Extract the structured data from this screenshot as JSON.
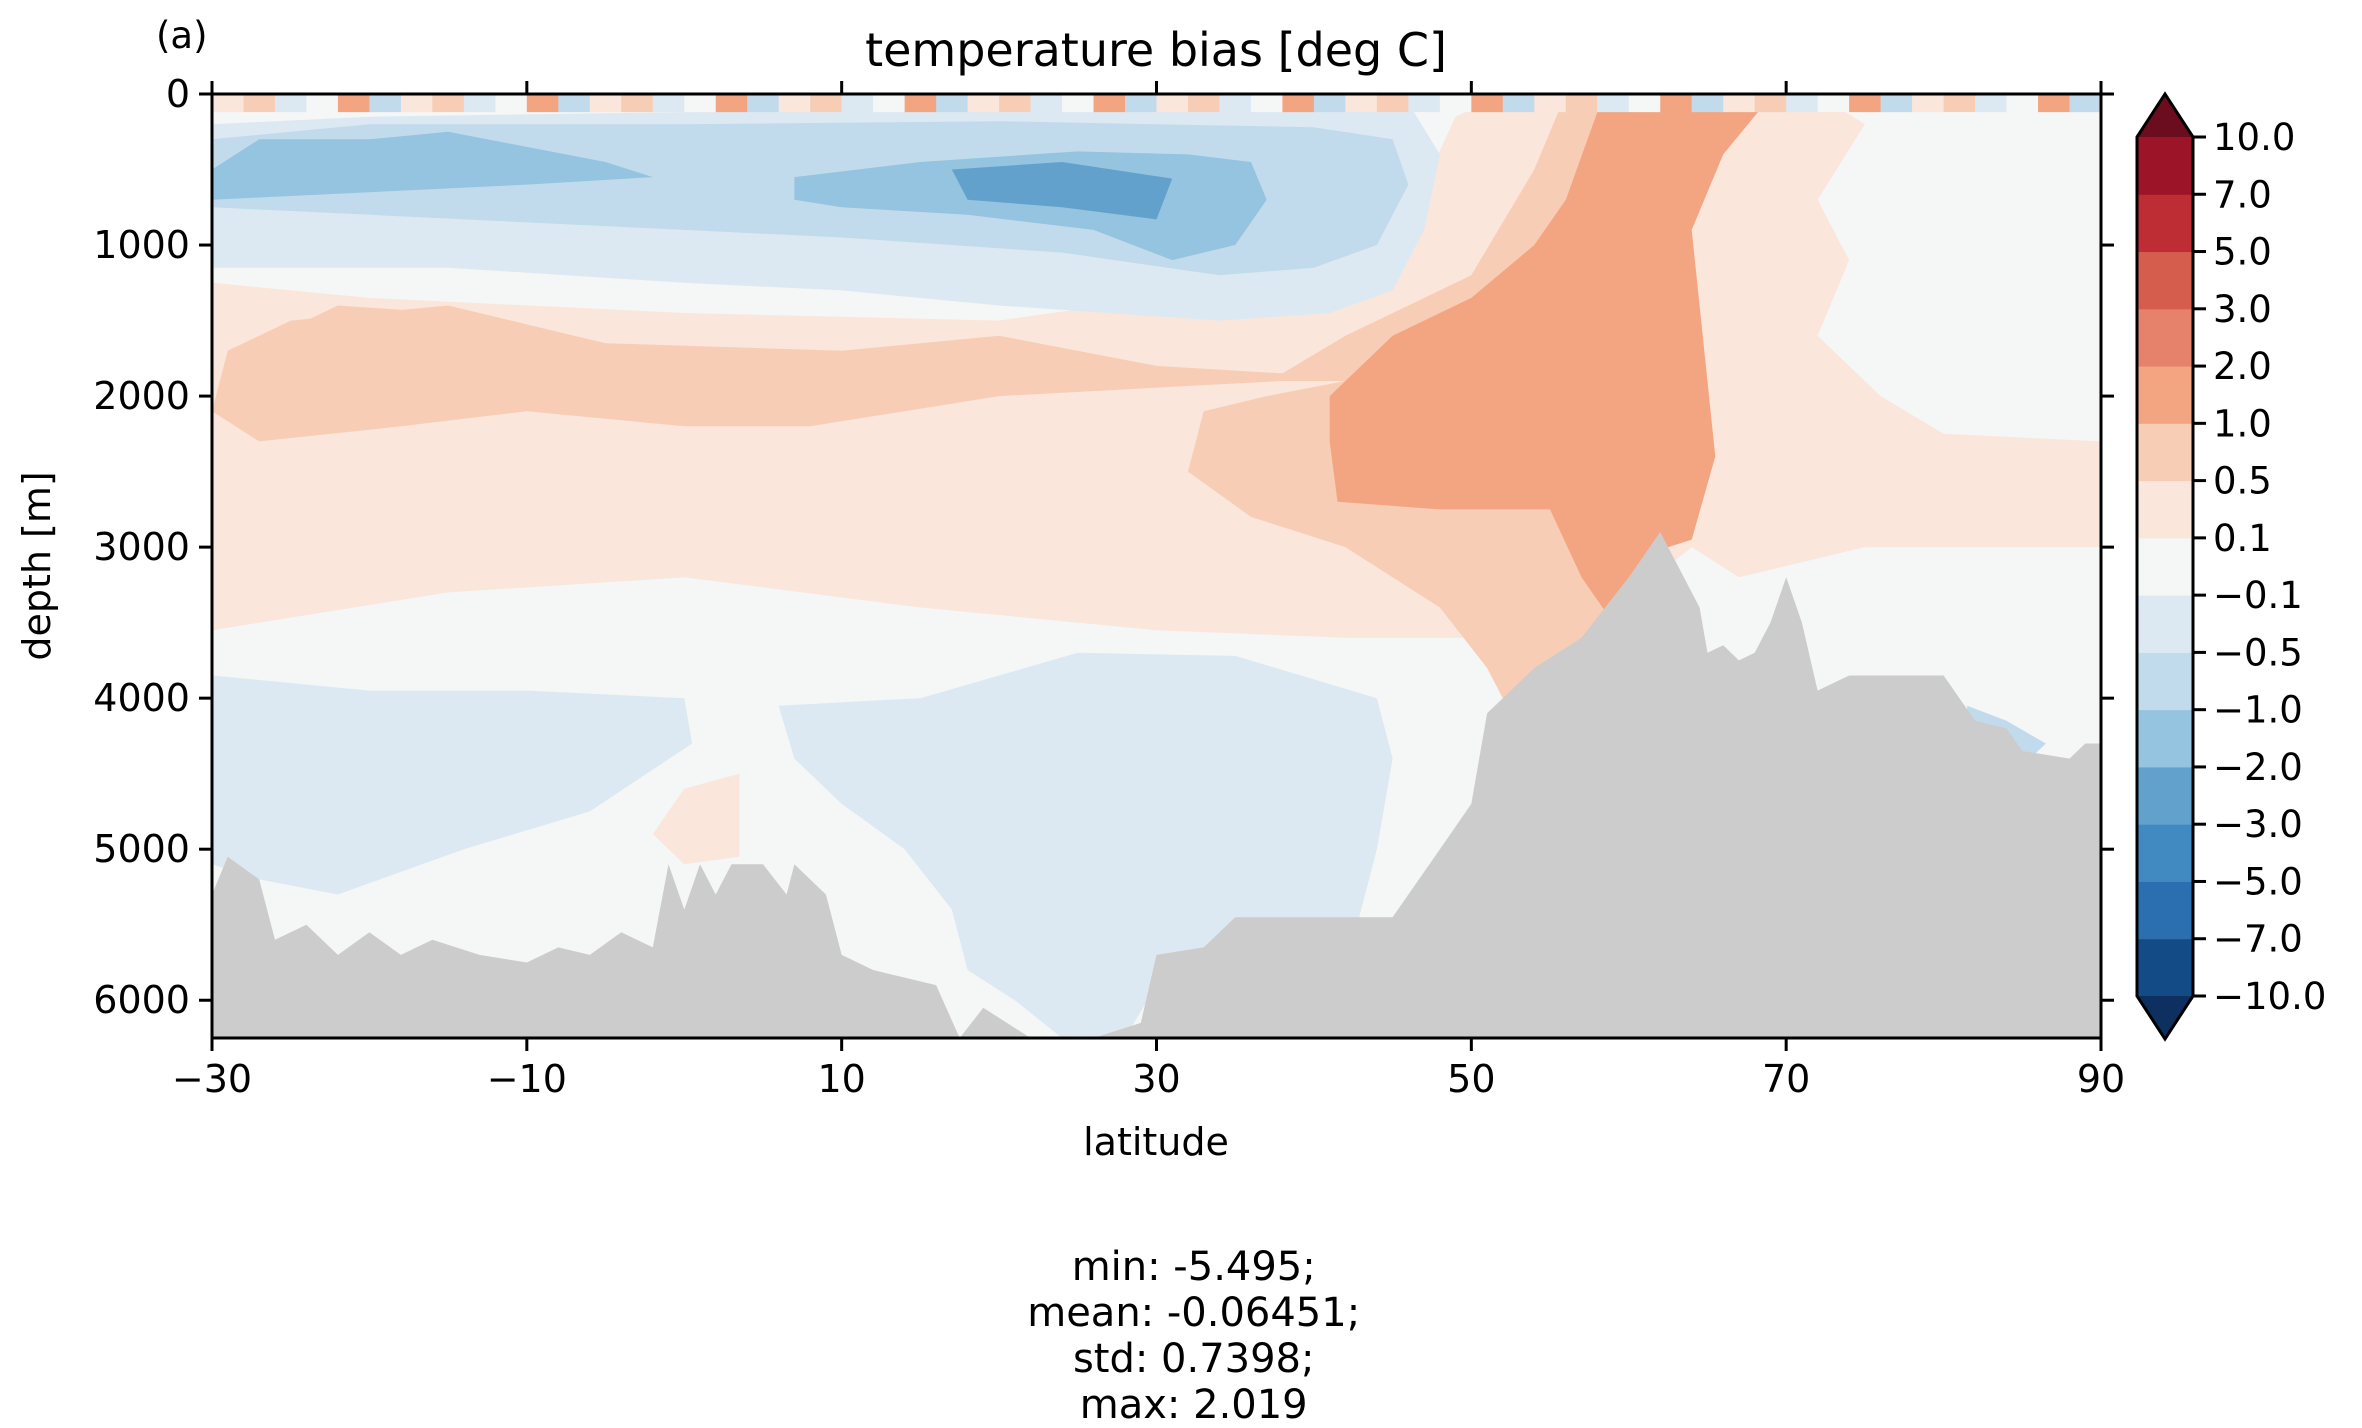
{
  "panel_label": "(a)",
  "stats": {
    "min": "min: -5.495;",
    "mean": "mean: -0.06451;",
    "std": "std: 0.7398;",
    "max": "max: 2.019"
  },
  "chart_data": {
    "type": "heatmap",
    "title": "temperature bias [deg C]",
    "xlabel": "latitude",
    "ylabel": "depth [m]",
    "xlim": [
      -30,
      90
    ],
    "ylim": [
      6250,
      0
    ],
    "x_ticks": [
      -30,
      -10,
      10,
      30,
      50,
      70,
      90
    ],
    "x_tick_labels": [
      "−30",
      "−10",
      "10",
      "30",
      "50",
      "70",
      "90"
    ],
    "y_ticks": [
      0,
      1000,
      2000,
      3000,
      4000,
      5000,
      6000
    ],
    "y_tick_labels": [
      "0",
      "1000",
      "2000",
      "3000",
      "4000",
      "5000",
      "6000"
    ],
    "colorbar": {
      "levels": [
        -10.0,
        -7.0,
        -5.0,
        -3.0,
        -2.0,
        -1.0,
        -0.5,
        -0.1,
        0.1,
        0.5,
        1.0,
        2.0,
        3.0,
        5.0,
        7.0,
        10.0
      ],
      "tick_labels": [
        "−10.0",
        "−7.0",
        "−5.0",
        "−3.0",
        "−2.0",
        "−1.0",
        "−0.5",
        "−0.1",
        "0.1",
        "0.5",
        "1.0",
        "2.0",
        "3.0",
        "5.0",
        "7.0",
        "10.0"
      ],
      "colors": [
        "#134b87",
        "#2c6fb0",
        "#4089c1",
        "#61a1cc",
        "#94c4df",
        "#c1dbec",
        "#dce9f2",
        "#f5f6f6",
        "#fae6db",
        "#f8cdb6",
        "#f3a582",
        "#e6816c",
        "#d45d4d",
        "#bf2d34",
        "#9b1427"
      ],
      "under_color": "#0d3060",
      "over_color": "#6b0d1f",
      "extend": "both"
    },
    "land_color": "#cccccc",
    "fields": [
      {
        "level": "0.1 to 0.5",
        "color": "#fae6db",
        "polygon": [
          [
            -30,
            1250
          ],
          [
            -20,
            1350
          ],
          [
            0,
            1450
          ],
          [
            20,
            1500
          ],
          [
            30,
            1350
          ],
          [
            38,
            1100
          ],
          [
            44,
            950
          ],
          [
            47,
            600
          ],
          [
            49,
            150
          ],
          [
            52,
            0
          ],
          [
            72,
            0
          ],
          [
            75,
            200
          ],
          [
            72,
            700
          ],
          [
            74,
            1100
          ],
          [
            72,
            1600
          ],
          [
            76,
            2000
          ],
          [
            80,
            2250
          ],
          [
            90,
            2300
          ],
          [
            90,
            3000
          ],
          [
            75,
            3000
          ],
          [
            67,
            3200
          ],
          [
            64,
            3000
          ],
          [
            58,
            3500
          ],
          [
            52,
            3600
          ],
          [
            42,
            3600
          ],
          [
            30,
            3550
          ],
          [
            15,
            3400
          ],
          [
            0,
            3200
          ],
          [
            -15,
            3300
          ],
          [
            -30,
            3550
          ]
        ]
      },
      {
        "level": "0.5 to 1.0",
        "color": "#f8cdb6",
        "polygon": [
          [
            -29,
            1700
          ],
          [
            -25,
            1500
          ],
          [
            -15,
            1400
          ],
          [
            -5,
            1650
          ],
          [
            10,
            1700
          ],
          [
            20,
            1600
          ],
          [
            30,
            1800
          ],
          [
            38,
            1850
          ],
          [
            42,
            1600
          ],
          [
            46,
            1400
          ],
          [
            50,
            1200
          ],
          [
            54,
            500
          ],
          [
            56,
            0
          ],
          [
            69,
            0
          ],
          [
            64,
            350
          ],
          [
            63,
            1000
          ],
          [
            65,
            2200
          ],
          [
            63,
            2900
          ],
          [
            60,
            3500
          ],
          [
            57,
            3800
          ],
          [
            52,
            4000
          ],
          [
            51,
            3800
          ],
          [
            48,
            3400
          ],
          [
            42,
            3000
          ],
          [
            36,
            2800
          ],
          [
            32,
            2500
          ],
          [
            33,
            2100
          ],
          [
            37,
            2000
          ],
          [
            42,
            1900
          ],
          [
            38,
            1900
          ],
          [
            20,
            2000
          ],
          [
            8,
            2200
          ],
          [
            0,
            2200
          ],
          [
            -10,
            2100
          ],
          [
            -18,
            2200
          ],
          [
            -27,
            2300
          ],
          [
            -30,
            2100
          ]
        ]
      },
      {
        "level": "1.0 to 2.0",
        "color": "#f3a582",
        "polygon": [
          [
            41,
            2000
          ],
          [
            45,
            1600
          ],
          [
            50,
            1350
          ],
          [
            54,
            1000
          ],
          [
            56,
            700
          ],
          [
            58,
            120
          ],
          [
            62,
            0
          ],
          [
            69,
            20
          ],
          [
            66,
            400
          ],
          [
            64,
            900
          ],
          [
            65.5,
            2400
          ],
          [
            64,
            2950
          ],
          [
            61,
            3050
          ],
          [
            59,
            3500
          ],
          [
            57,
            3200
          ],
          [
            55,
            2750
          ],
          [
            48,
            2750
          ],
          [
            41.5,
            2700
          ],
          [
            41,
            2300
          ]
        ]
      },
      {
        "level": "0.5 to 1.0",
        "color": "#f8cdb6",
        "polygon": [
          [
            -29,
            1750
          ],
          [
            -22,
            1400
          ],
          [
            -15,
            1450
          ],
          [
            -5,
            1850
          ],
          [
            -6,
            2100
          ],
          [
            -14,
            2050
          ],
          [
            -22,
            2150
          ],
          [
            -28,
            2050
          ]
        ]
      },
      {
        "level": "0.5 to 1.0",
        "color": "#f8cdb6",
        "polygon": [
          [
            4,
            2050
          ],
          [
            8,
            1800
          ],
          [
            12,
            1750
          ],
          [
            13,
            2000
          ],
          [
            10,
            2150
          ],
          [
            5,
            2150
          ]
        ]
      },
      {
        "level": "-0.1 to -0.5",
        "color": "#dce9f2",
        "polygon": [
          [
            -30,
            200
          ],
          [
            -20,
            150
          ],
          [
            0,
            120
          ],
          [
            20,
            100
          ],
          [
            40,
            80
          ],
          [
            46,
            60
          ],
          [
            48,
            400
          ],
          [
            47,
            900
          ],
          [
            45,
            1300
          ],
          [
            41,
            1450
          ],
          [
            34,
            1500
          ],
          [
            20,
            1400
          ],
          [
            10,
            1300
          ],
          [
            0,
            1250
          ],
          [
            -15,
            1150
          ],
          [
            -30,
            1150
          ]
        ]
      },
      {
        "level": "-0.5 to -1.0",
        "color": "#c1dbec",
        "polygon": [
          [
            -30,
            300
          ],
          [
            -20,
            200
          ],
          [
            0,
            200
          ],
          [
            20,
            180
          ],
          [
            40,
            220
          ],
          [
            45,
            300
          ],
          [
            46,
            600
          ],
          [
            44,
            1000
          ],
          [
            40,
            1150
          ],
          [
            34,
            1200
          ],
          [
            24,
            1050
          ],
          [
            10,
            950
          ],
          [
            0,
            900
          ],
          [
            -10,
            850
          ],
          [
            -20,
            800
          ],
          [
            -30,
            750
          ]
        ]
      },
      {
        "level": "-1.0 to -2.0",
        "color": "#94c4df",
        "polygon": [
          [
            -30,
            500
          ],
          [
            -27,
            300
          ],
          [
            -20,
            300
          ],
          [
            -15,
            250
          ],
          [
            -10,
            350
          ],
          [
            -5,
            450
          ],
          [
            -2,
            550
          ],
          [
            -10,
            600
          ],
          [
            -20,
            650
          ],
          [
            -30,
            700
          ]
        ]
      },
      {
        "level": "-1.0 to -2.0",
        "color": "#94c4df",
        "polygon": [
          [
            7,
            550
          ],
          [
            15,
            450
          ],
          [
            25,
            380
          ],
          [
            32,
            400
          ],
          [
            36,
            450
          ],
          [
            37,
            700
          ],
          [
            35,
            1000
          ],
          [
            31,
            1100
          ],
          [
            26,
            900
          ],
          [
            18,
            800
          ],
          [
            10,
            750
          ],
          [
            7,
            700
          ]
        ]
      },
      {
        "level": "-2.0 to -3.0",
        "color": "#61a1cc",
        "polygon": [
          [
            17,
            500
          ],
          [
            24,
            450
          ],
          [
            31,
            560
          ],
          [
            30,
            830
          ],
          [
            24,
            750
          ],
          [
            18,
            700
          ]
        ]
      },
      {
        "level": "-0.1 to -0.5",
        "color": "#dce9f2",
        "polygon": [
          [
            -30,
            3850
          ],
          [
            -20,
            3950
          ],
          [
            -10,
            3950
          ],
          [
            0,
            4000
          ],
          [
            0.5,
            4300
          ],
          [
            -6,
            4750
          ],
          [
            -14,
            5000
          ],
          [
            -22,
            5300
          ],
          [
            -27,
            5200
          ],
          [
            -30,
            5100
          ]
        ]
      },
      {
        "level": "-0.1 to -0.5",
        "color": "#dce9f2",
        "polygon": [
          [
            6,
            4050
          ],
          [
            15,
            4000
          ],
          [
            25,
            3700
          ],
          [
            35,
            3720
          ],
          [
            44,
            4000
          ],
          [
            45,
            4400
          ],
          [
            44,
            5000
          ],
          [
            42,
            5800
          ],
          [
            30,
            5900
          ],
          [
            28,
            6250
          ],
          [
            24,
            6250
          ],
          [
            21,
            6000
          ],
          [
            18,
            5800
          ],
          [
            17,
            5400
          ],
          [
            14,
            5000
          ],
          [
            10,
            4700
          ],
          [
            7,
            4400
          ]
        ]
      },
      {
        "level": "0.1 to 0.5",
        "color": "#fae6db",
        "polygon": [
          [
            -2,
            4900
          ],
          [
            0,
            4600
          ],
          [
            3.5,
            4500
          ],
          [
            3.5,
            5050
          ],
          [
            0,
            5100
          ]
        ]
      },
      {
        "level": "-0.5 to -1.0",
        "color": "#c1dbec",
        "polygon": [
          [
            81.5,
            4050
          ],
          [
            84,
            4150
          ],
          [
            86.5,
            4300
          ],
          [
            85,
            4450
          ],
          [
            81.5,
            4450
          ]
        ]
      },
      {
        "level": "-2.0 to -3.0",
        "color": "#61a1cc",
        "polygon": [
          [
            81.3,
            4150
          ],
          [
            82,
            4250
          ],
          [
            81.8,
            4500
          ],
          [
            81.3,
            4500
          ]
        ]
      }
    ],
    "bathymetry_profile": [
      [
        -30,
        5300
      ],
      [
        -29,
        5050
      ],
      [
        -27,
        5200
      ],
      [
        -26,
        5600
      ],
      [
        -24,
        5500
      ],
      [
        -22,
        5700
      ],
      [
        -20,
        5550
      ],
      [
        -18,
        5700
      ],
      [
        -16,
        5600
      ],
      [
        -13,
        5700
      ],
      [
        -10,
        5750
      ],
      [
        -8,
        5650
      ],
      [
        -6,
        5700
      ],
      [
        -4,
        5550
      ],
      [
        -2,
        5650
      ],
      [
        -1,
        5100
      ],
      [
        0,
        5400
      ],
      [
        1,
        5100
      ],
      [
        2,
        5300
      ],
      [
        3,
        5100
      ],
      [
        5,
        5100
      ],
      [
        6.5,
        5300
      ],
      [
        7,
        5100
      ],
      [
        9,
        5300
      ],
      [
        10,
        5700
      ],
      [
        12,
        5800
      ],
      [
        14,
        5850
      ],
      [
        16,
        5900
      ],
      [
        17.5,
        6250
      ],
      [
        19,
        6050
      ],
      [
        22,
        6250
      ],
      [
        26,
        6250
      ],
      [
        29,
        6150
      ],
      [
        30,
        5700
      ],
      [
        33,
        5650
      ],
      [
        35,
        5450
      ],
      [
        45,
        5450
      ],
      [
        46,
        5300
      ],
      [
        48,
        5000
      ],
      [
        50,
        4700
      ],
      [
        51,
        4100
      ],
      [
        52,
        4000
      ],
      [
        54,
        3800
      ],
      [
        57,
        3600
      ],
      [
        60,
        3200
      ],
      [
        62,
        2900
      ],
      [
        63,
        3100
      ],
      [
        64.5,
        3400
      ],
      [
        65,
        3700
      ],
      [
        66,
        3650
      ],
      [
        67,
        3750
      ],
      [
        68,
        3700
      ],
      [
        69,
        3500
      ],
      [
        70,
        3200
      ],
      [
        71,
        3500
      ],
      [
        72,
        3950
      ],
      [
        74,
        3850
      ],
      [
        80,
        3850
      ],
      [
        82,
        4150
      ],
      [
        84,
        4200
      ],
      [
        85,
        4350
      ],
      [
        88,
        4400
      ],
      [
        89,
        4300
      ],
      [
        90,
        4300
      ],
      [
        90,
        6250
      ],
      [
        -30,
        6250
      ]
    ],
    "surface_noise_band": {
      "y_range": [
        0,
        120
      ]
    }
  }
}
